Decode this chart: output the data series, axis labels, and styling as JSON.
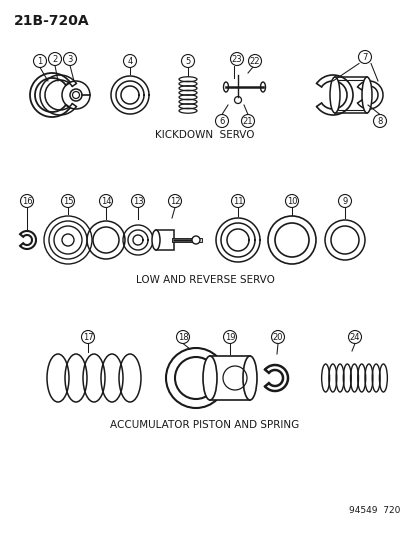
{
  "title": "21B-720A",
  "bg_color": "#ffffff",
  "line_color": "#1a1a1a",
  "section1_label": "KICKDOWN  SERVO",
  "section2_label": "LOW AND REVERSE SERVO",
  "section3_label": "ACCUMULATOR PISTON AND SPRING",
  "watermark": "94549  720",
  "figsize": [
    4.14,
    5.33
  ],
  "dpi": 100
}
